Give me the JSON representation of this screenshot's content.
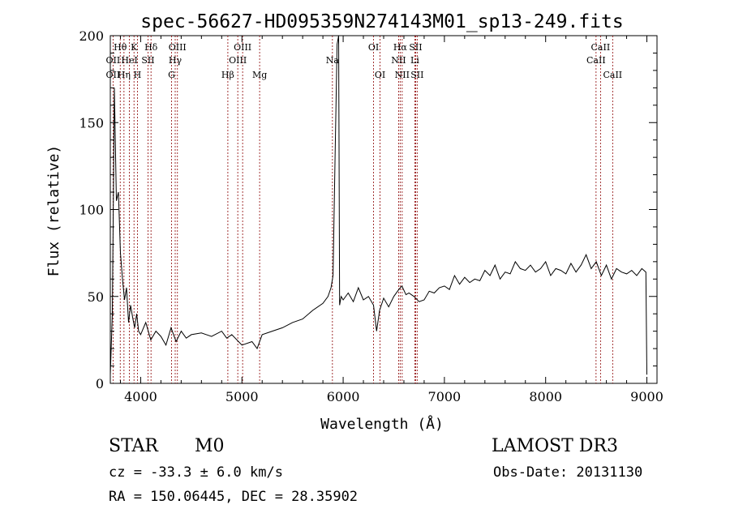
{
  "chart_data": {
    "type": "line",
    "title": "spec-56627-HD095359N274143M01_sp13-249.fits",
    "xlabel": "Wavelength (Å)",
    "ylabel": "Flux (relative)",
    "xlim": [
      3700,
      9100
    ],
    "ylim": [
      0,
      200
    ],
    "x_ticks": [
      4000,
      5000,
      6000,
      7000,
      8000,
      9000
    ],
    "y_ticks": [
      0,
      50,
      100,
      150,
      200
    ],
    "grid": false,
    "line_color": "#000000",
    "marker_color": "#8b0000",
    "spectrum_x": [
      3700,
      3720,
      3740,
      3760,
      3780,
      3800,
      3820,
      3840,
      3860,
      3880,
      3900,
      3920,
      3940,
      3960,
      3980,
      4000,
      4050,
      4100,
      4150,
      4200,
      4250,
      4300,
      4350,
      4400,
      4450,
      4500,
      4600,
      4700,
      4800,
      4850,
      4900,
      5000,
      5100,
      5150,
      5200,
      5300,
      5400,
      5500,
      5600,
      5700,
      5800,
      5850,
      5880,
      5900,
      5920,
      5940,
      5955,
      5965,
      5980,
      6000,
      6050,
      6100,
      6150,
      6200,
      6250,
      6300,
      6330,
      6360,
      6400,
      6450,
      6500,
      6550,
      6580,
      6620,
      6650,
      6700,
      6750,
      6800,
      6850,
      6900,
      6950,
      7000,
      7050,
      7100,
      7150,
      7200,
      7250,
      7300,
      7350,
      7400,
      7450,
      7500,
      7550,
      7600,
      7650,
      7700,
      7750,
      7800,
      7850,
      7900,
      7950,
      8000,
      8050,
      8100,
      8150,
      8200,
      8250,
      8300,
      8350,
      8400,
      8450,
      8500,
      8550,
      8600,
      8650,
      8700,
      8750,
      8800,
      8850,
      8900,
      8950,
      8990,
      9000
    ],
    "spectrum_y": [
      5,
      40,
      170,
      105,
      110,
      75,
      60,
      48,
      55,
      35,
      45,
      38,
      32,
      40,
      30,
      28,
      35,
      25,
      30,
      27,
      22,
      32,
      24,
      30,
      26,
      28,
      29,
      27,
      30,
      26,
      28,
      22,
      24,
      20,
      28,
      30,
      32,
      35,
      37,
      42,
      46,
      50,
      55,
      62,
      130,
      195,
      200,
      45,
      50,
      48,
      52,
      47,
      55,
      48,
      50,
      45,
      30,
      42,
      49,
      44,
      50,
      54,
      56,
      51,
      52,
      50,
      47,
      48,
      53,
      52,
      55,
      56,
      54,
      62,
      57,
      61,
      58,
      60,
      59,
      65,
      62,
      68,
      60,
      64,
      63,
      70,
      66,
      65,
      68,
      64,
      66,
      70,
      62,
      66,
      65,
      63,
      69,
      64,
      68,
      74,
      66,
      70,
      62,
      68,
      60,
      66,
      64,
      63,
      65,
      62,
      66,
      64,
      5
    ],
    "lines": [
      {
        "label": "OII",
        "wavelength": 3727,
        "row": 2
      },
      {
        "label": "Hθ",
        "wavelength": 3798,
        "row": 1
      },
      {
        "label": "OII",
        "wavelength": 3727,
        "row": 3
      },
      {
        "label": "Hη",
        "wavelength": 3835,
        "row": 3
      },
      {
        "label": "HeI",
        "wavelength": 3889,
        "row": 2
      },
      {
        "label": "K",
        "wavelength": 3934,
        "row": 1
      },
      {
        "label": "H",
        "wavelength": 3968,
        "row": 3
      },
      {
        "label": "SII",
        "wavelength": 4072,
        "row": 2
      },
      {
        "label": "Hδ",
        "wavelength": 4102,
        "row": 1
      },
      {
        "label": "OIII",
        "wavelength": 4363,
        "row": 1
      },
      {
        "label": "Hγ",
        "wavelength": 4341,
        "row": 2
      },
      {
        "label": "G",
        "wavelength": 4305,
        "row": 3
      },
      {
        "label": "Hβ",
        "wavelength": 4861,
        "row": 3
      },
      {
        "label": "OIII",
        "wavelength": 5007,
        "row": 1
      },
      {
        "label": "OIII",
        "wavelength": 4959,
        "row": 2
      },
      {
        "label": "Mg",
        "wavelength": 5175,
        "row": 3
      },
      {
        "label": "Na",
        "wavelength": 5894,
        "row": 2
      },
      {
        "label": "OI",
        "wavelength": 6300,
        "row": 1
      },
      {
        "label": "OI",
        "wavelength": 6364,
        "row": 3
      },
      {
        "label": "Hα",
        "wavelength": 6563,
        "row": 1
      },
      {
        "label": "SII",
        "wavelength": 6716,
        "row": 1
      },
      {
        "label": "NII",
        "wavelength": 6548,
        "row": 2
      },
      {
        "label": "Li",
        "wavelength": 6708,
        "row": 2
      },
      {
        "label": "NII",
        "wavelength": 6583,
        "row": 3
      },
      {
        "label": "SII",
        "wavelength": 6731,
        "row": 3
      },
      {
        "label": "CaII",
        "wavelength": 8542,
        "row": 1
      },
      {
        "label": "CaII",
        "wavelength": 8498,
        "row": 2
      },
      {
        "label": "CaII",
        "wavelength": 8662,
        "row": 3
      }
    ]
  },
  "info": {
    "class": "STAR",
    "subclass": "M0",
    "survey": "LAMOST DR3",
    "redshift": "cz = -33.3 ± 6.0 km/s",
    "obs_date": "Obs-Date: 20131130",
    "coords": "RA = 150.06445, DEC =  28.35902"
  }
}
